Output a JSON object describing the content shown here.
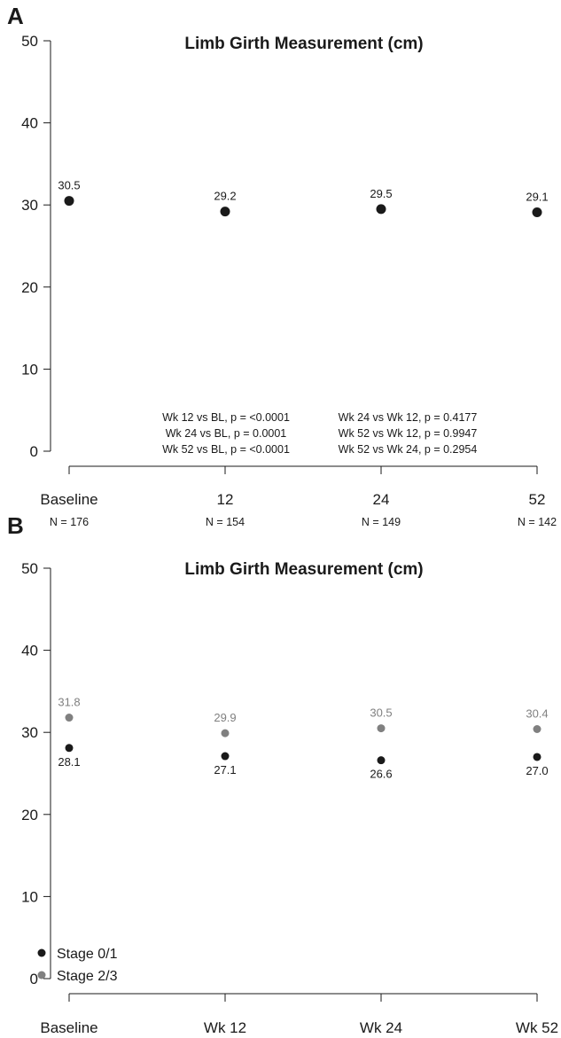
{
  "chart_data": [
    {
      "panel": "A",
      "type": "scatter",
      "title": "Limb Girth Measurement (cm)",
      "ylim": [
        0,
        50
      ],
      "yticks": [
        0,
        10,
        20,
        30,
        40,
        50
      ],
      "categories": [
        "Baseline",
        "12",
        "24",
        "52"
      ],
      "n_labels": [
        "N = 176",
        "N = 154",
        "N = 149",
        "N = 142"
      ],
      "series": [
        {
          "values": [
            30.5,
            29.2,
            29.5,
            29.1
          ],
          "labels": [
            "30.5",
            "29.2",
            "29.5",
            "29.1"
          ],
          "color": "#1a1a1a"
        }
      ],
      "stats_left": [
        "Wk 12 vs BL, p = <0.0001",
        "Wk 24 vs BL, p = 0.0001",
        "Wk 52 vs BL, p = <0.0001"
      ],
      "stats_right": [
        "Wk 24 vs Wk 12, p = 0.4177",
        "Wk 52 vs Wk 12, p = 0.9947",
        "Wk 52 vs Wk 24, p = 0.2954"
      ],
      "grid": false
    },
    {
      "panel": "B",
      "type": "scatter",
      "title": "Limb Girth Measurement (cm)",
      "ylim": [
        0,
        50
      ],
      "yticks": [
        0,
        10,
        20,
        30,
        40,
        50
      ],
      "categories": [
        "Baseline",
        "Wk 12",
        "Wk 24",
        "Wk 52"
      ],
      "series": [
        {
          "name": "Stage 0/1",
          "values": [
            28.1,
            27.1,
            26.6,
            27.0
          ],
          "labels": [
            "28.1",
            "27.1",
            "26.6",
            "27.0"
          ],
          "color": "#1a1a1a",
          "label_position": "below"
        },
        {
          "name": "Stage 2/3",
          "values": [
            31.8,
            29.9,
            30.5,
            30.4
          ],
          "labels": [
            "31.8",
            "29.9",
            "30.5",
            "30.4"
          ],
          "color": "#808080",
          "label_position": "above"
        }
      ],
      "legend": "bottom-left",
      "grid": false
    }
  ]
}
